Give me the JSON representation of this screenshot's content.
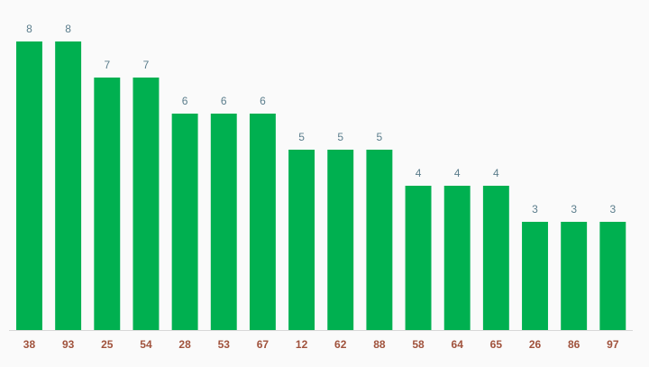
{
  "chart_data": {
    "type": "bar",
    "categories": [
      "38",
      "93",
      "25",
      "54",
      "28",
      "53",
      "67",
      "12",
      "62",
      "88",
      "58",
      "64",
      "65",
      "26",
      "86",
      "97"
    ],
    "values": [
      8,
      8,
      7,
      7,
      6,
      6,
      6,
      5,
      5,
      5,
      4,
      4,
      4,
      3,
      3,
      3
    ],
    "color": "#00b050"
  }
}
